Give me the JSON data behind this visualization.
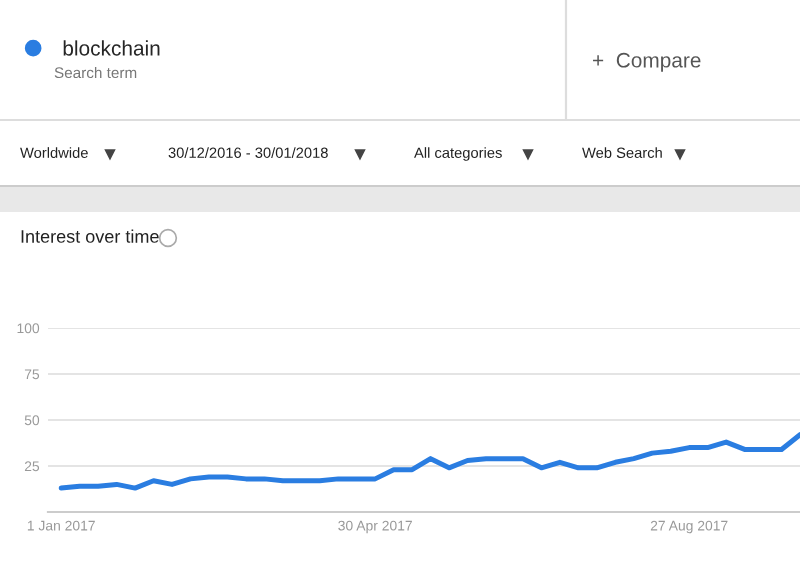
{
  "chart_data": {
    "type": "line",
    "title": "Interest over time",
    "annotations": [
      "Search term",
      "+  Compare",
      "Worldwide",
      "30/12/2016 - 30/01/2018",
      "All categories",
      "Web Search"
    ],
    "x": [
      "2017-01-01",
      "2017-01-08",
      "2017-01-15",
      "2017-01-22",
      "2017-01-29",
      "2017-02-05",
      "2017-02-12",
      "2017-02-19",
      "2017-02-26",
      "2017-03-05",
      "2017-03-12",
      "2017-03-19",
      "2017-03-26",
      "2017-04-02",
      "2017-04-09",
      "2017-04-16",
      "2017-04-23",
      "2017-04-30",
      "2017-05-07",
      "2017-05-14",
      "2017-05-21",
      "2017-05-28",
      "2017-06-04",
      "2017-06-11",
      "2017-06-18",
      "2017-06-25",
      "2017-07-02",
      "2017-07-09",
      "2017-07-16",
      "2017-07-23",
      "2017-07-30",
      "2017-08-06",
      "2017-08-13",
      "2017-08-20",
      "2017-08-27",
      "2017-09-03",
      "2017-09-10",
      "2017-09-17",
      "2017-09-24",
      "2017-10-01",
      "2017-10-08"
    ],
    "series": [
      {
        "name": "blockchain",
        "color": "#2a7de1",
        "values": [
          13,
          14,
          14,
          15,
          13,
          17,
          15,
          18,
          19,
          19,
          18,
          18,
          17,
          17,
          17,
          18,
          18,
          18,
          23,
          23,
          29,
          24,
          28,
          29,
          29,
          29,
          24,
          27,
          24,
          24,
          27,
          29,
          32,
          33,
          35,
          35,
          38,
          34,
          34,
          34,
          42
        ]
      }
    ],
    "xlim": [
      "2016-12-27",
      "2017-10-08"
    ],
    "xticks": [
      {
        "value": "2017-01-01",
        "label": "1 Jan 2017"
      },
      {
        "value": "2017-04-30",
        "label": "30 Apr 2017"
      },
      {
        "value": "2017-08-27",
        "label": "27 Aug 2017"
      }
    ],
    "ylim": [
      0,
      100
    ],
    "yticks": [
      {
        "value": 0,
        "label": null
      },
      25,
      50,
      75,
      100
    ],
    "grid": "y",
    "legend": "top left",
    "marker": "none",
    "line_style": "solid"
  }
}
